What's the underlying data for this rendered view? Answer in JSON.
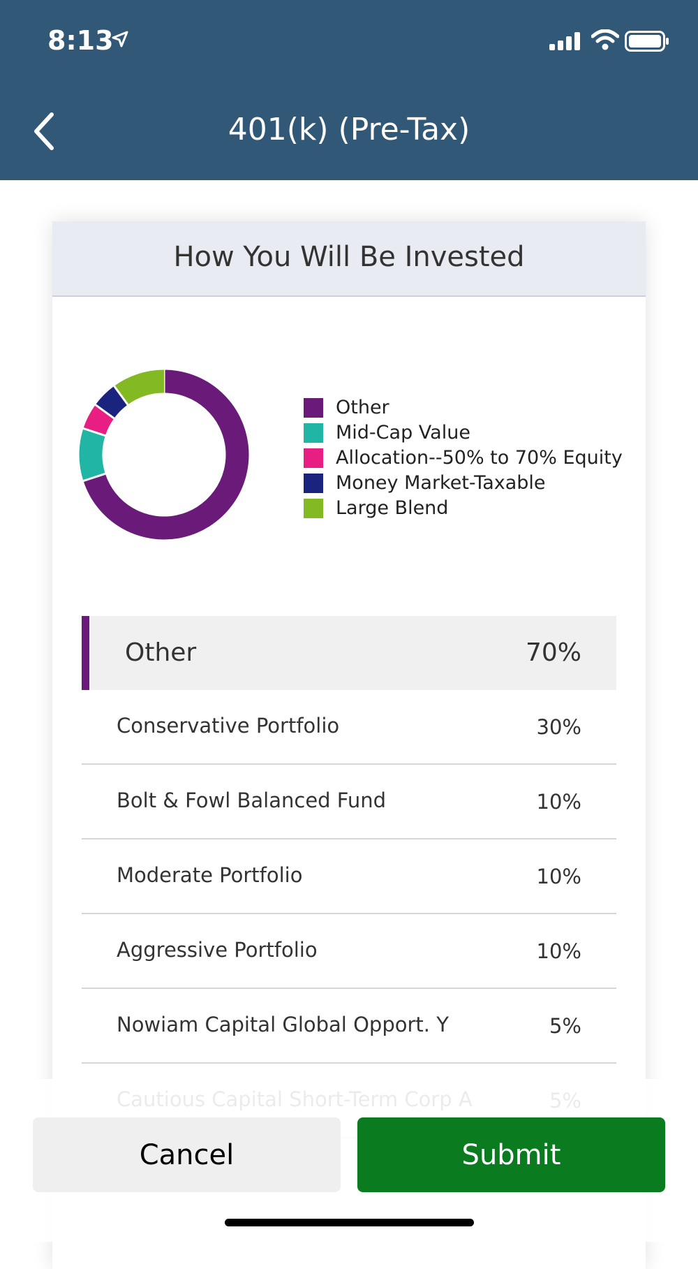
{
  "status_bar": {
    "time": "8:13"
  },
  "header": {
    "title": "401(k) (Pre-Tax)"
  },
  "card": {
    "title": "How You Will Be Invested"
  },
  "legend": [
    {
      "label": "Other",
      "color": "#6a1b7a",
      "percent": 70
    },
    {
      "label": "Mid-Cap Value",
      "color": "#21b5a5",
      "percent": 10
    },
    {
      "label": "Allocation--50% to 70% Equity",
      "color": "#e91e83",
      "percent": 5
    },
    {
      "label": "Money Market-Taxable",
      "color": "#1a237e",
      "percent": 5
    },
    {
      "label": "Large Blend",
      "color": "#83b923",
      "percent": 10
    }
  ],
  "group": {
    "label": "Other",
    "percent": "70%",
    "color": "#6a1b7a"
  },
  "funds": [
    {
      "name": "Conservative Portfolio",
      "percent": "30%"
    },
    {
      "name": "Bolt & Fowl Balanced Fund",
      "percent": "10%"
    },
    {
      "name": "Moderate Portfolio",
      "percent": "10%"
    },
    {
      "name": "Aggressive Portfolio",
      "percent": "10%"
    },
    {
      "name": "Nowiam Capital Global Opport. Y",
      "percent": "5%"
    },
    {
      "name": "Cautious Capital Short-Term Corp A",
      "percent": "5%"
    }
  ],
  "buttons": {
    "cancel": "Cancel",
    "submit": "Submit"
  }
}
